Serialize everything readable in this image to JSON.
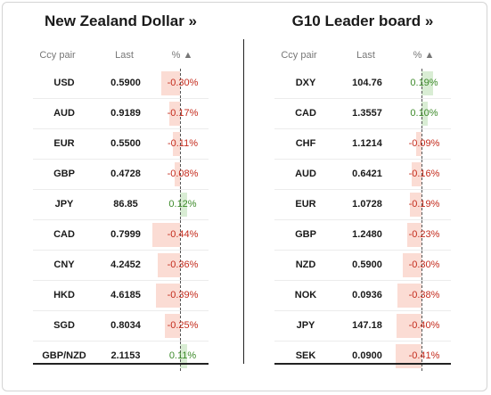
{
  "colors": {
    "negative_text": "#c42b1c",
    "positive_text": "#3d8a2a",
    "negative_bar": "#fbdcd4",
    "positive_bar": "#d9edd4"
  },
  "panels": [
    {
      "title": "New Zealand Dollar »",
      "headers": {
        "ccy": "Ccy pair",
        "last": "Last",
        "pct": "% ▲"
      },
      "rows": [
        {
          "ccy": "USD",
          "last": "0.5900",
          "pct": "-0.30%",
          "value": -0.3
        },
        {
          "ccy": "AUD",
          "last": "0.9189",
          "pct": "-0.17%",
          "value": -0.17
        },
        {
          "ccy": "EUR",
          "last": "0.5500",
          "pct": "-0.11%",
          "value": -0.11
        },
        {
          "ccy": "GBP",
          "last": "0.4728",
          "pct": "-0.08%",
          "value": -0.08
        },
        {
          "ccy": "JPY",
          "last": "86.85",
          "pct": "0.12%",
          "value": 0.12
        },
        {
          "ccy": "CAD",
          "last": "0.7999",
          "pct": "-0.44%",
          "value": -0.44
        },
        {
          "ccy": "CNY",
          "last": "4.2452",
          "pct": "-0.36%",
          "value": -0.36
        },
        {
          "ccy": "HKD",
          "last": "4.6185",
          "pct": "-0.39%",
          "value": -0.39
        },
        {
          "ccy": "SGD",
          "last": "0.8034",
          "pct": "-0.25%",
          "value": -0.25
        },
        {
          "ccy": "GBP/NZD",
          "last": "2.1153",
          "pct": "0.11%",
          "value": 0.11
        }
      ]
    },
    {
      "title": "G10 Leader board »",
      "headers": {
        "ccy": "Ccy pair",
        "last": "Last",
        "pct": "% ▲"
      },
      "rows": [
        {
          "ccy": "DXY",
          "last": "104.76",
          "pct": "0.19%",
          "value": 0.19
        },
        {
          "ccy": "CAD",
          "last": "1.3557",
          "pct": "0.10%",
          "value": 0.1
        },
        {
          "ccy": "CHF",
          "last": "1.1214",
          "pct": "-0.09%",
          "value": -0.09
        },
        {
          "ccy": "AUD",
          "last": "0.6421",
          "pct": "-0.16%",
          "value": -0.16
        },
        {
          "ccy": "EUR",
          "last": "1.0728",
          "pct": "-0.19%",
          "value": -0.19
        },
        {
          "ccy": "GBP",
          "last": "1.2480",
          "pct": "-0.23%",
          "value": -0.23
        },
        {
          "ccy": "NZD",
          "last": "0.5900",
          "pct": "-0.30%",
          "value": -0.3
        },
        {
          "ccy": "NOK",
          "last": "0.0936",
          "pct": "-0.38%",
          "value": -0.38
        },
        {
          "ccy": "JPY",
          "last": "147.18",
          "pct": "-0.40%",
          "value": -0.4
        },
        {
          "ccy": "SEK",
          "last": "0.0900",
          "pct": "-0.41%",
          "value": -0.41
        }
      ]
    }
  ]
}
